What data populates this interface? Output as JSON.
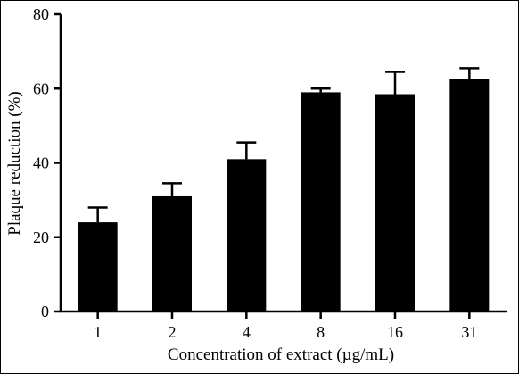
{
  "chart_data": {
    "type": "bar",
    "title": "",
    "xlabel": "Concentration of extract (µg/mL)",
    "ylabel": "Plaque reduction (%)",
    "categories": [
      "1",
      "2",
      "4",
      "8",
      "16",
      "31"
    ],
    "values": [
      24,
      31,
      41,
      59,
      58.5,
      62.5
    ],
    "error": [
      4,
      3.5,
      4.5,
      1,
      6,
      3
    ],
    "ylim": [
      0,
      80
    ],
    "yticks": [
      0,
      20,
      40,
      60,
      80
    ],
    "grid": false,
    "bar_color": "#000000"
  }
}
